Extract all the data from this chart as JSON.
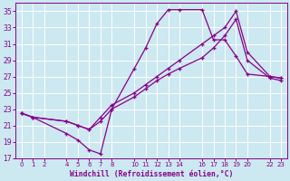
{
  "xlabel": "Windchill (Refroidissement éolien,°C)",
  "bg_color": "#cce8f0",
  "grid_color": "#aaddcc",
  "line_color": "#880088",
  "xlim": [
    -0.5,
    23.5
  ],
  "ylim": [
    17,
    36
  ],
  "xtick_vals": [
    0,
    1,
    2,
    4,
    5,
    6,
    7,
    8,
    10,
    11,
    12,
    13,
    14,
    16,
    17,
    18,
    19,
    20,
    22,
    23
  ],
  "ytick_vals": [
    17,
    19,
    21,
    23,
    25,
    27,
    29,
    31,
    33,
    35
  ],
  "line1_x": [
    0,
    1,
    4,
    5,
    6,
    7,
    8,
    10,
    11,
    12,
    13,
    14,
    16,
    17,
    18,
    19,
    20,
    22,
    23
  ],
  "line1_y": [
    22.5,
    22,
    20,
    19.2,
    18,
    17.5,
    23,
    28,
    30.5,
    33.5,
    35.2,
    35.2,
    35.2,
    31.5,
    31.5,
    29.5,
    27.3,
    27.0,
    26.8
  ],
  "line2_x": [
    0,
    1,
    4,
    5,
    6,
    7,
    8,
    10,
    11,
    12,
    13,
    14,
    16,
    17,
    18,
    19,
    20,
    22,
    23
  ],
  "line2_y": [
    22.5,
    22,
    21.5,
    21,
    20.5,
    22,
    23.5,
    25,
    26,
    27,
    28,
    29,
    31,
    32,
    33,
    35,
    30,
    27,
    26.8
  ],
  "line3_x": [
    0,
    1,
    4,
    5,
    6,
    7,
    8,
    10,
    11,
    12,
    13,
    14,
    16,
    17,
    18,
    19,
    20,
    22,
    23
  ],
  "line3_y": [
    22.5,
    22,
    21.5,
    21,
    20.5,
    21.5,
    23,
    24.5,
    25.5,
    26.5,
    27.3,
    28,
    29.3,
    30.5,
    32,
    34,
    29,
    26.8,
    26.5
  ]
}
